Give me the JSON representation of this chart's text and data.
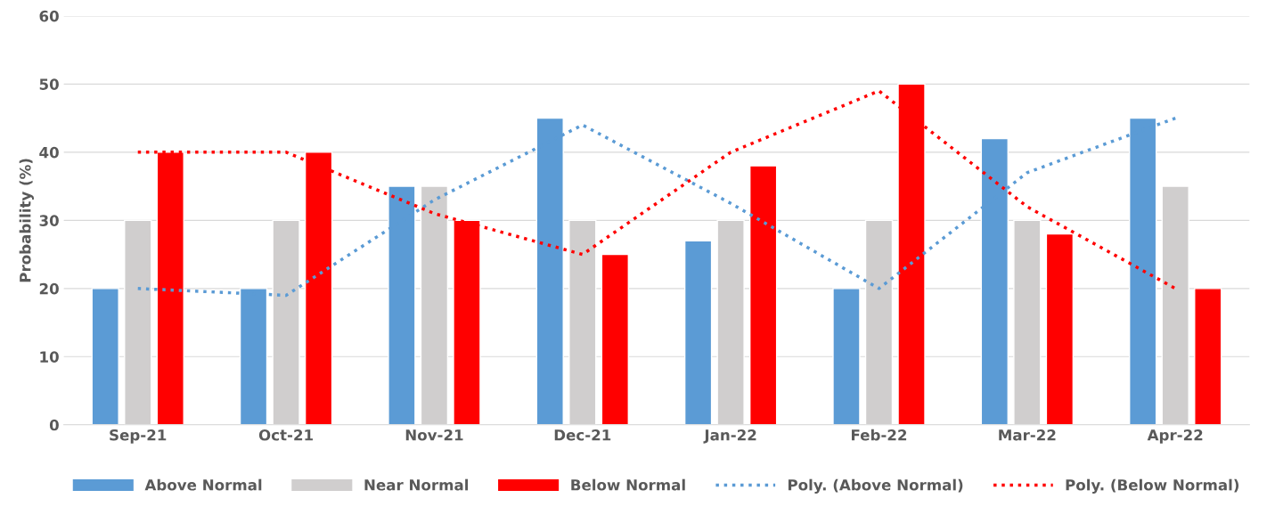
{
  "chart_data": {
    "type": "bar",
    "ylabel": "Probability (%)",
    "categories": [
      "Sep-21",
      "Oct-21",
      "Nov-21",
      "Dec-21",
      "Jan-22",
      "Feb-22",
      "Mar-22",
      "Apr-22"
    ],
    "series": [
      {
        "name": "Above Normal",
        "color": "#5b9bd5",
        "values": [
          20,
          20,
          35,
          45,
          27,
          20,
          42,
          45
        ]
      },
      {
        "name": "Near Normal",
        "color": "#d0cece",
        "values": [
          30,
          30,
          35,
          30,
          30,
          30,
          30,
          35
        ]
      },
      {
        "name": "Below Normal",
        "color": "#ff0000",
        "values": [
          40,
          40,
          30,
          25,
          38,
          50,
          28,
          20
        ]
      },
      {
        "name": "Poly. (Above Normal)",
        "type": "line",
        "line_style": "dotted",
        "color": "#5b9bd5",
        "values": [
          20,
          19,
          33,
          44,
          32.5,
          20,
          37,
          45
        ]
      },
      {
        "name": "Poly. (Below Normal)",
        "type": "line",
        "line_style": "dotted",
        "color": "#ff0000",
        "values": [
          40,
          40,
          31,
          25,
          40,
          49,
          32,
          20
        ]
      }
    ],
    "ylim": [
      0,
      60
    ],
    "yticks": [
      0,
      10,
      20,
      30,
      40,
      50,
      60
    ],
    "grid": "y",
    "legend": "bottom"
  }
}
